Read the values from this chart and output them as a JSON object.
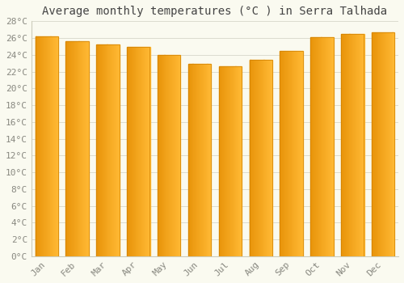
{
  "title": "Average monthly temperatures (°C ) in Serra Talhada",
  "months": [
    "Jan",
    "Feb",
    "Mar",
    "Apr",
    "May",
    "Jun",
    "Jul",
    "Aug",
    "Sep",
    "Oct",
    "Nov",
    "Dec"
  ],
  "values": [
    26.2,
    25.6,
    25.2,
    24.9,
    24.0,
    22.9,
    22.6,
    23.4,
    24.5,
    26.1,
    26.5,
    26.7
  ],
  "bar_color_left": "#E8940A",
  "bar_color_right": "#FFB833",
  "ylim": [
    0,
    28
  ],
  "yticks": [
    0,
    2,
    4,
    6,
    8,
    10,
    12,
    14,
    16,
    18,
    20,
    22,
    24,
    26,
    28
  ],
  "ytick_labels": [
    "0°C",
    "2°C",
    "4°C",
    "6°C",
    "8°C",
    "10°C",
    "12°C",
    "14°C",
    "16°C",
    "18°C",
    "20°C",
    "22°C",
    "24°C",
    "26°C",
    "28°C"
  ],
  "background_color": "#FAFAF0",
  "grid_color": "#DCDCD0",
  "title_fontsize": 10,
  "tick_fontsize": 8,
  "tick_color": "#888880",
  "bar_width": 0.75,
  "n_gradient_steps": 30
}
